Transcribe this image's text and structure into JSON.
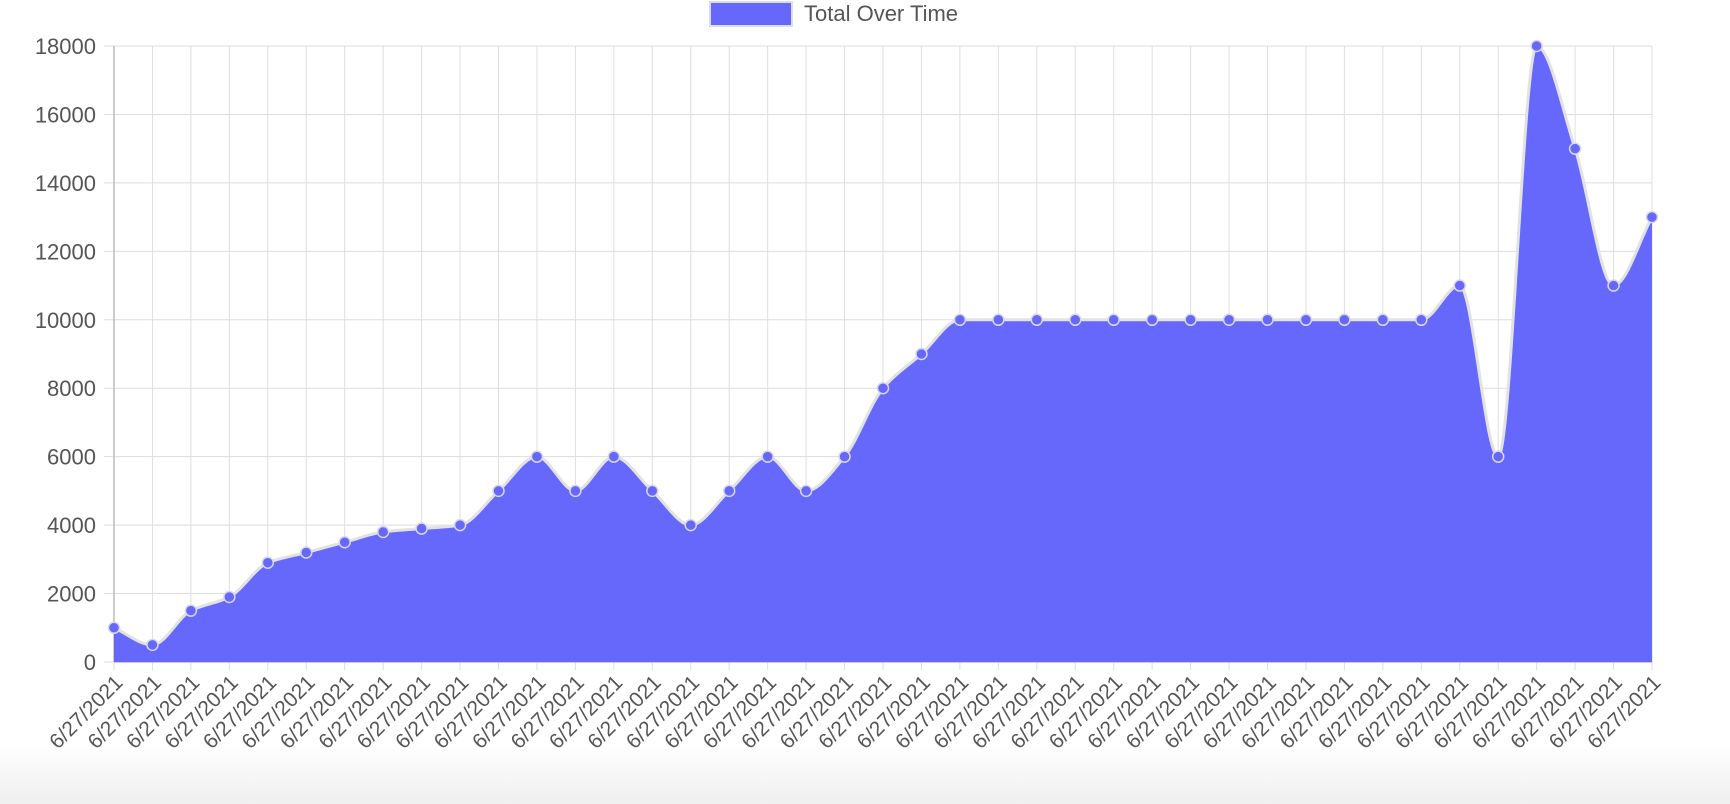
{
  "chart_data": {
    "type": "area",
    "title": "",
    "xlabel": "",
    "ylabel": "",
    "grid": true,
    "legend_position": "top-center",
    "categories": [
      "6/27/2021",
      "6/27/2021",
      "6/27/2021",
      "6/27/2021",
      "6/27/2021",
      "6/27/2021",
      "6/27/2021",
      "6/27/2021",
      "6/27/2021",
      "6/27/2021",
      "6/27/2021",
      "6/27/2021",
      "6/27/2021",
      "6/27/2021",
      "6/27/2021",
      "6/27/2021",
      "6/27/2021",
      "6/27/2021",
      "6/27/2021",
      "6/27/2021",
      "6/27/2021",
      "6/27/2021",
      "6/27/2021",
      "6/27/2021",
      "6/27/2021",
      "6/27/2021",
      "6/27/2021",
      "6/27/2021",
      "6/27/2021",
      "6/27/2021",
      "6/27/2021",
      "6/27/2021",
      "6/27/2021",
      "6/27/2021",
      "6/27/2021",
      "6/27/2021",
      "6/27/2021",
      "6/27/2021",
      "6/27/2021",
      "6/27/2021",
      "6/27/2021"
    ],
    "series": [
      {
        "name": "Total Over Time",
        "color": "#6568fb",
        "values": [
          1000,
          500,
          1500,
          1900,
          2900,
          3200,
          3500,
          3800,
          3900,
          4000,
          5000,
          6000,
          5000,
          6000,
          5000,
          4000,
          5000,
          6000,
          5000,
          6000,
          8000,
          9000,
          10000,
          10000,
          10000,
          10000,
          10000,
          10000,
          10000,
          10000,
          10000,
          10000,
          10000,
          10000,
          10000,
          11000,
          6000,
          18000,
          15000,
          11000,
          13000
        ]
      }
    ],
    "ylim": [
      0,
      18000
    ],
    "yticks": [
      0,
      2000,
      4000,
      6000,
      8000,
      10000,
      12000,
      14000,
      16000,
      18000
    ]
  }
}
